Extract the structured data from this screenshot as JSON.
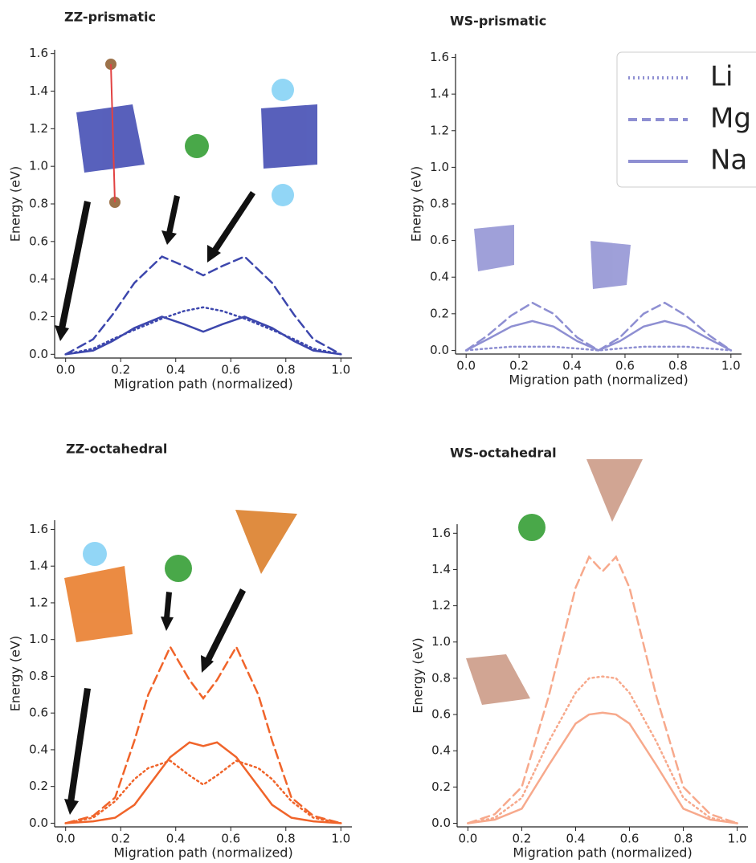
{
  "chart_data": [
    {
      "type": "line",
      "title": "ZZ-prismatic",
      "x_label": "Migration path (normalized)",
      "y_label": "Energy (eV)",
      "x": [
        0,
        0.1,
        0.17,
        0.25,
        0.35,
        0.43,
        0.5,
        0.57,
        0.65,
        0.75,
        0.83,
        0.9,
        1.0
      ],
      "series": [
        {
          "name": "Li",
          "color": "#3d47ad",
          "dash": "dotted",
          "values": [
            0,
            0.03,
            0.08,
            0.13,
            0.19,
            0.23,
            0.25,
            0.23,
            0.19,
            0.13,
            0.08,
            0.03,
            0
          ]
        },
        {
          "name": "Mg",
          "color": "#3d47ad",
          "dash": "dashed",
          "values": [
            0,
            0.08,
            0.21,
            0.38,
            0.52,
            0.47,
            0.42,
            0.47,
            0.52,
            0.38,
            0.21,
            0.08,
            0
          ]
        },
        {
          "name": "Na",
          "color": "#3d47ad",
          "dash": "solid",
          "values": [
            0,
            0.02,
            0.07,
            0.14,
            0.2,
            0.16,
            0.12,
            0.16,
            0.2,
            0.14,
            0.07,
            0.02,
            0
          ]
        }
      ],
      "xlim": [
        -0.04,
        1.04
      ],
      "ylim": [
        -0.02,
        1.62
      ],
      "xticks": [
        {
          "value": 0,
          "label": "0.0"
        },
        0.2,
        0.4,
        0.6,
        0.8,
        {
          "value": 1,
          "label": "1.0"
        }
      ],
      "yticks": [
        {
          "value": 0,
          "label": "0.0"
        },
        0.2,
        0.4,
        0.6,
        0.8,
        {
          "value": 1,
          "label": "1.0"
        },
        1.2,
        1.4,
        1.6
      ]
    },
    {
      "type": "line",
      "title": "WS-prismatic",
      "x_label": "Migration path (normalized)",
      "y_label": "Energy (eV)",
      "x": [
        0,
        0.08,
        0.17,
        0.25,
        0.33,
        0.42,
        0.5,
        0.58,
        0.67,
        0.75,
        0.83,
        0.92,
        1.0
      ],
      "series": [
        {
          "name": "Li",
          "color": "#8e8fd2",
          "dash": "dotted",
          "values": [
            0,
            0.01,
            0.02,
            0.02,
            0.02,
            0.01,
            0,
            0.01,
            0.02,
            0.02,
            0.02,
            0.01,
            0
          ]
        },
        {
          "name": "Mg",
          "color": "#8e8fd2",
          "dash": "dashed",
          "values": [
            0,
            0.08,
            0.19,
            0.26,
            0.2,
            0.07,
            0,
            0.07,
            0.2,
            0.26,
            0.19,
            0.08,
            0
          ]
        },
        {
          "name": "Na",
          "color": "#8e8fd2",
          "dash": "solid",
          "values": [
            0,
            0.06,
            0.13,
            0.16,
            0.13,
            0.05,
            0,
            0.05,
            0.13,
            0.16,
            0.13,
            0.06,
            0
          ]
        }
      ],
      "legend": "upper right",
      "xlim": [
        -0.04,
        1.04
      ],
      "ylim": [
        -0.02,
        1.62
      ],
      "xticks": [
        {
          "value": 0,
          "label": "0.0"
        },
        0.2,
        0.4,
        0.6,
        0.8,
        {
          "value": 1,
          "label": "1.0"
        }
      ],
      "yticks": [
        {
          "value": 0,
          "label": "0.0"
        },
        0.2,
        0.4,
        0.6,
        0.8,
        {
          "value": 1,
          "label": "1.0"
        },
        1.2,
        1.4,
        1.6
      ]
    },
    {
      "type": "line",
      "title": "ZZ-octahedral",
      "x_label": "Migration path (normalized)",
      "y_label": "Energy (eV)",
      "x": [
        0,
        0.1,
        0.18,
        0.25,
        0.3,
        0.38,
        0.45,
        0.5,
        0.55,
        0.62,
        0.7,
        0.75,
        0.82,
        0.9,
        1.0
      ],
      "series": [
        {
          "name": "Li",
          "color": "#f0642a",
          "dash": "dotted",
          "values": [
            0,
            0.03,
            0.12,
            0.24,
            0.3,
            0.34,
            0.26,
            0.21,
            0.26,
            0.34,
            0.3,
            0.24,
            0.12,
            0.03,
            0
          ]
        },
        {
          "name": "Mg",
          "color": "#f0642a",
          "dash": "dashed",
          "values": [
            0,
            0.04,
            0.14,
            0.45,
            0.7,
            0.96,
            0.78,
            0.68,
            0.78,
            0.96,
            0.7,
            0.45,
            0.14,
            0.04,
            0
          ]
        },
        {
          "name": "Na",
          "color": "#f0642a",
          "dash": "solid",
          "values": [
            0,
            0.01,
            0.03,
            0.1,
            0.2,
            0.36,
            0.44,
            0.42,
            0.44,
            0.36,
            0.2,
            0.1,
            0.03,
            0.01,
            0
          ]
        }
      ],
      "xlim": [
        -0.04,
        1.04
      ],
      "ylim": [
        -0.02,
        1.65
      ],
      "xticks": [
        {
          "value": 0,
          "label": "0.0"
        },
        0.2,
        0.4,
        0.6,
        0.8,
        {
          "value": 1,
          "label": "1.0"
        }
      ],
      "yticks": [
        {
          "value": 0,
          "label": "0.0"
        },
        0.2,
        0.4,
        0.6,
        0.8,
        {
          "value": 1,
          "label": "1.0"
        },
        1.2,
        1.4,
        1.6
      ]
    },
    {
      "type": "line",
      "title": "WS-octahedral",
      "x_label": "Migration path (normalized)",
      "y_label": "Energy (eV)",
      "x": [
        0,
        0.1,
        0.2,
        0.3,
        0.4,
        0.45,
        0.5,
        0.55,
        0.6,
        0.7,
        0.8,
        0.9,
        1.0
      ],
      "series": [
        {
          "name": "Li",
          "color": "#f7a98c",
          "dash": "dotted",
          "values": [
            0,
            0.03,
            0.14,
            0.45,
            0.72,
            0.8,
            0.81,
            0.8,
            0.72,
            0.45,
            0.14,
            0.03,
            0
          ]
        },
        {
          "name": "Mg",
          "color": "#f7a98c",
          "dash": "dashed",
          "values": [
            0,
            0.05,
            0.2,
            0.7,
            1.3,
            1.47,
            1.39,
            1.47,
            1.3,
            0.7,
            0.2,
            0.05,
            0
          ]
        },
        {
          "name": "Na",
          "color": "#f7a98c",
          "dash": "solid",
          "values": [
            0,
            0.02,
            0.08,
            0.32,
            0.55,
            0.6,
            0.61,
            0.6,
            0.55,
            0.32,
            0.08,
            0.02,
            0
          ]
        }
      ],
      "xlim": [
        -0.04,
        1.04
      ],
      "ylim": [
        -0.02,
        1.65
      ],
      "xticks": [
        {
          "value": 0,
          "label": "0.0"
        },
        0.2,
        0.4,
        0.6,
        0.8,
        {
          "value": 1,
          "label": "1.0"
        }
      ],
      "yticks": [
        {
          "value": 0,
          "label": "0.0"
        },
        0.2,
        0.4,
        0.6,
        0.8,
        {
          "value": 1,
          "label": "1.0"
        },
        1.2,
        1.4,
        1.6
      ]
    }
  ]
}
